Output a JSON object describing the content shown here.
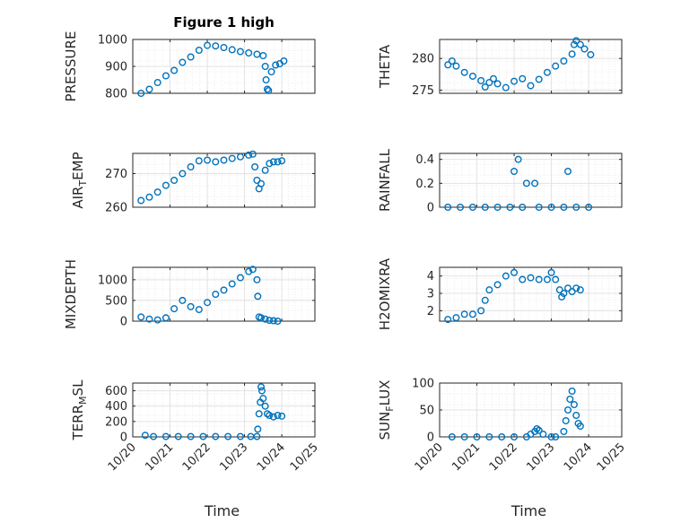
{
  "figure": {
    "title": "Figure 1 high",
    "xlabel": "Time"
  },
  "chart_data": [
    {
      "type": "scatter",
      "title": "Figure 1 high",
      "ylabel": "PRESSURE",
      "ylabel_parts": [
        {
          "t": "PRESSURE"
        }
      ],
      "ylim": [
        800,
        1000
      ],
      "yticks": [
        800,
        900,
        1000
      ],
      "ytick_labels": [
        "800",
        "900",
        "1000"
      ],
      "xlim": [
        0.8,
        5.2
      ],
      "xticks": [
        0.8,
        1.7,
        2.6,
        3.5,
        4.4,
        5.2
      ],
      "xtick_labels": [
        "10/20",
        "10/21",
        "10/22",
        "10/23",
        "10/24",
        "10/25"
      ],
      "show_xtick_labels": false,
      "xlabel": "",
      "points": [
        [
          1,
          800
        ],
        [
          1.2,
          815
        ],
        [
          1.4,
          840
        ],
        [
          1.6,
          865
        ],
        [
          1.8,
          885
        ],
        [
          2.0,
          915
        ],
        [
          2.2,
          935
        ],
        [
          2.4,
          960
        ],
        [
          2.6,
          978
        ],
        [
          2.8,
          976
        ],
        [
          3.0,
          970
        ],
        [
          3.2,
          962
        ],
        [
          3.4,
          955
        ],
        [
          3.6,
          950
        ],
        [
          3.8,
          945
        ],
        [
          3.95,
          940
        ],
        [
          4.0,
          900
        ],
        [
          4.02,
          850
        ],
        [
          4.05,
          815
        ],
        [
          4.08,
          810
        ],
        [
          4.15,
          880
        ],
        [
          4.25,
          905
        ],
        [
          4.35,
          910
        ],
        [
          4.45,
          920
        ]
      ]
    },
    {
      "type": "scatter",
      "ylabel": "THETA",
      "ylabel_parts": [
        {
          "t": "THETA"
        }
      ],
      "ylim": [
        274.5,
        283
      ],
      "yticks": [
        275,
        280
      ],
      "ytick_labels": [
        "275",
        "280"
      ],
      "xlim": [
        0.8,
        5.2
      ],
      "xticks": [
        0.8,
        1.7,
        2.6,
        3.5,
        4.4,
        5.2
      ],
      "xtick_labels": [
        "10/20",
        "10/21",
        "10/22",
        "10/23",
        "10/24",
        "10/25"
      ],
      "show_xtick_labels": false,
      "xlabel": "",
      "points": [
        [
          1,
          279
        ],
        [
          1.1,
          279.6
        ],
        [
          1.2,
          278.8
        ],
        [
          1.4,
          277.8
        ],
        [
          1.6,
          277.2
        ],
        [
          1.8,
          276.5
        ],
        [
          1.9,
          275.5
        ],
        [
          2.0,
          276.2
        ],
        [
          2.1,
          276.8
        ],
        [
          2.2,
          276
        ],
        [
          2.4,
          275.4
        ],
        [
          2.6,
          276.4
        ],
        [
          2.8,
          276.8
        ],
        [
          3.0,
          275.7
        ],
        [
          3.2,
          276.7
        ],
        [
          3.4,
          277.8
        ],
        [
          3.6,
          278.8
        ],
        [
          3.8,
          279.6
        ],
        [
          4.0,
          280.7
        ],
        [
          4.05,
          282.2
        ],
        [
          4.1,
          282.8
        ],
        [
          4.2,
          282.2
        ],
        [
          4.3,
          281.5
        ],
        [
          4.45,
          280.6
        ]
      ]
    },
    {
      "type": "scatter",
      "ylabel": "AIR_TEMP",
      "ylabel_parts": [
        {
          "t": "AIR"
        },
        {
          "t": "T",
          "sub": true
        },
        {
          "t": "EMP"
        }
      ],
      "ylim": [
        260,
        276
      ],
      "yticks": [
        260,
        270
      ],
      "ytick_labels": [
        "260",
        "270"
      ],
      "xlim": [
        0.8,
        5.2
      ],
      "xticks": [
        0.8,
        1.7,
        2.6,
        3.5,
        4.4,
        5.2
      ],
      "xtick_labels": [
        "10/20",
        "10/21",
        "10/22",
        "10/23",
        "10/24",
        "10/25"
      ],
      "show_xtick_labels": false,
      "xlabel": "",
      "points": [
        [
          1,
          262
        ],
        [
          1.2,
          263
        ],
        [
          1.4,
          264.5
        ],
        [
          1.6,
          266.5
        ],
        [
          1.8,
          268
        ],
        [
          2.0,
          270
        ],
        [
          2.2,
          272
        ],
        [
          2.4,
          273.8
        ],
        [
          2.6,
          274
        ],
        [
          2.8,
          273.5
        ],
        [
          3.0,
          274
        ],
        [
          3.2,
          274.5
        ],
        [
          3.4,
          275
        ],
        [
          3.6,
          275.5
        ],
        [
          3.7,
          275.8
        ],
        [
          3.75,
          272
        ],
        [
          3.8,
          268
        ],
        [
          3.85,
          265.5
        ],
        [
          3.9,
          267
        ],
        [
          4.0,
          271
        ],
        [
          4.1,
          273
        ],
        [
          4.2,
          273.5
        ],
        [
          4.3,
          273.5
        ],
        [
          4.4,
          273.8
        ]
      ]
    },
    {
      "type": "scatter",
      "ylabel": "RAINFALL",
      "ylabel_parts": [
        {
          "t": "RAINFALL"
        }
      ],
      "ylim": [
        0,
        0.45
      ],
      "yticks": [
        0,
        0.2,
        0.4
      ],
      "ytick_labels": [
        "0",
        "0.2",
        "0.4"
      ],
      "xlim": [
        0.8,
        5.2
      ],
      "xticks": [
        0.8,
        1.7,
        2.6,
        3.5,
        4.4,
        5.2
      ],
      "xtick_labels": [
        "10/20",
        "10/21",
        "10/22",
        "10/23",
        "10/24",
        "10/25"
      ],
      "show_xtick_labels": false,
      "xlabel": "",
      "points": [
        [
          1,
          0
        ],
        [
          1.3,
          0
        ],
        [
          1.6,
          0
        ],
        [
          1.9,
          0
        ],
        [
          2.2,
          0
        ],
        [
          2.5,
          0
        ],
        [
          2.6,
          0.3
        ],
        [
          2.7,
          0.4
        ],
        [
          2.9,
          0.2
        ],
        [
          3.1,
          0.2
        ],
        [
          2.8,
          0
        ],
        [
          3.2,
          0
        ],
        [
          3.5,
          0
        ],
        [
          3.8,
          0
        ],
        [
          3.9,
          0.3
        ],
        [
          4.1,
          0
        ],
        [
          4.4,
          0
        ]
      ]
    },
    {
      "type": "scatter",
      "ylabel": "MIXDEPTH",
      "ylabel_parts": [
        {
          "t": "MIXDEPTH"
        }
      ],
      "ylim": [
        0,
        1300
      ],
      "yticks": [
        0,
        500,
        1000
      ],
      "ytick_labels": [
        "0",
        "500",
        "1000"
      ],
      "xlim": [
        0.8,
        5.2
      ],
      "xticks": [
        0.8,
        1.7,
        2.6,
        3.5,
        4.4,
        5.2
      ],
      "xtick_labels": [
        "10/20",
        "10/21",
        "10/22",
        "10/23",
        "10/24",
        "10/25"
      ],
      "show_xtick_labels": false,
      "xlabel": "",
      "points": [
        [
          1,
          100
        ],
        [
          1.2,
          50
        ],
        [
          1.4,
          30
        ],
        [
          1.6,
          80
        ],
        [
          1.8,
          300
        ],
        [
          2.0,
          500
        ],
        [
          2.2,
          350
        ],
        [
          2.4,
          280
        ],
        [
          2.6,
          450
        ],
        [
          2.8,
          650
        ],
        [
          3.0,
          750
        ],
        [
          3.2,
          900
        ],
        [
          3.4,
          1050
        ],
        [
          3.6,
          1200
        ],
        [
          3.7,
          1250
        ],
        [
          3.8,
          1000
        ],
        [
          3.82,
          600
        ],
        [
          3.85,
          100
        ],
        [
          3.9,
          80
        ],
        [
          4.0,
          50
        ],
        [
          4.1,
          20
        ],
        [
          4.2,
          10
        ],
        [
          4.3,
          0
        ]
      ]
    },
    {
      "type": "scatter",
      "ylabel": "H2OMIXRA",
      "ylabel_parts": [
        {
          "t": "H2OMIXRA"
        }
      ],
      "ylim": [
        1.4,
        4.5
      ],
      "yticks": [
        2,
        3,
        4
      ],
      "ytick_labels": [
        "2",
        "3",
        "4"
      ],
      "xlim": [
        0.8,
        5.2
      ],
      "xticks": [
        0.8,
        1.7,
        2.6,
        3.5,
        4.4,
        5.2
      ],
      "xtick_labels": [
        "10/20",
        "10/21",
        "10/22",
        "10/23",
        "10/24",
        "10/25"
      ],
      "show_xtick_labels": false,
      "xlabel": "",
      "points": [
        [
          1,
          1.5
        ],
        [
          1.2,
          1.6
        ],
        [
          1.4,
          1.8
        ],
        [
          1.6,
          1.8
        ],
        [
          1.8,
          2.0
        ],
        [
          1.9,
          2.6
        ],
        [
          2.0,
          3.2
        ],
        [
          2.2,
          3.5
        ],
        [
          2.4,
          4.0
        ],
        [
          2.6,
          4.2
        ],
        [
          2.8,
          3.8
        ],
        [
          3.0,
          3.9
        ],
        [
          3.2,
          3.8
        ],
        [
          3.4,
          3.8
        ],
        [
          3.5,
          4.2
        ],
        [
          3.6,
          3.8
        ],
        [
          3.7,
          3.2
        ],
        [
          3.75,
          2.8
        ],
        [
          3.8,
          3.0
        ],
        [
          3.9,
          3.3
        ],
        [
          4.0,
          3.1
        ],
        [
          4.1,
          3.3
        ],
        [
          4.2,
          3.2
        ]
      ]
    },
    {
      "type": "scatter",
      "ylabel": "TERR_MSL",
      "ylabel_parts": [
        {
          "t": "TERR"
        },
        {
          "t": "M",
          "sub": true
        },
        {
          "t": "SL"
        }
      ],
      "ylim": [
        0,
        700
      ],
      "yticks": [
        0,
        200,
        400,
        600
      ],
      "ytick_labels": [
        "0",
        "200",
        "400",
        "600"
      ],
      "xlim": [
        0.8,
        5.2
      ],
      "xticks": [
        0.8,
        1.7,
        2.6,
        3.5,
        4.4,
        5.2
      ],
      "xtick_labels": [
        "10/20",
        "10/21",
        "10/22",
        "10/23",
        "10/24",
        "10/25"
      ],
      "show_xtick_labels": true,
      "xlabel": "Time",
      "points": [
        [
          1.1,
          20
        ],
        [
          1.3,
          5
        ],
        [
          1.6,
          5
        ],
        [
          1.9,
          5
        ],
        [
          2.2,
          5
        ],
        [
          2.5,
          5
        ],
        [
          2.8,
          5
        ],
        [
          3.1,
          5
        ],
        [
          3.4,
          5
        ],
        [
          3.65,
          5
        ],
        [
          3.8,
          5
        ],
        [
          3.82,
          100
        ],
        [
          3.85,
          300
        ],
        [
          3.88,
          450
        ],
        [
          3.9,
          650
        ],
        [
          3.92,
          600
        ],
        [
          3.95,
          500
        ],
        [
          4.0,
          400
        ],
        [
          4.05,
          300
        ],
        [
          4.1,
          280
        ],
        [
          4.2,
          260
        ],
        [
          4.3,
          280
        ],
        [
          4.4,
          270
        ]
      ]
    },
    {
      "type": "scatter",
      "ylabel": "SUN_FLUX",
      "ylabel_parts": [
        {
          "t": "SUN"
        },
        {
          "t": "F",
          "sub": true
        },
        {
          "t": "LUX"
        }
      ],
      "ylim": [
        0,
        100
      ],
      "yticks": [
        0,
        50,
        100
      ],
      "ytick_labels": [
        "0",
        "50",
        "100"
      ],
      "xlim": [
        0.8,
        5.2
      ],
      "xticks": [
        0.8,
        1.7,
        2.6,
        3.5,
        4.4,
        5.2
      ],
      "xtick_labels": [
        "10/20",
        "10/21",
        "10/22",
        "10/23",
        "10/24",
        "10/25"
      ],
      "show_xtick_labels": true,
      "xlabel": "Time",
      "points": [
        [
          1.1,
          0
        ],
        [
          1.4,
          0
        ],
        [
          1.7,
          0
        ],
        [
          2.0,
          0
        ],
        [
          2.3,
          0
        ],
        [
          2.6,
          0
        ],
        [
          2.9,
          0
        ],
        [
          3.0,
          5
        ],
        [
          3.1,
          10
        ],
        [
          3.15,
          15
        ],
        [
          3.2,
          12
        ],
        [
          3.3,
          5
        ],
        [
          3.5,
          0
        ],
        [
          3.6,
          0
        ],
        [
          3.8,
          10
        ],
        [
          3.85,
          30
        ],
        [
          3.9,
          50
        ],
        [
          3.95,
          70
        ],
        [
          4.0,
          85
        ],
        [
          4.05,
          60
        ],
        [
          4.1,
          40
        ],
        [
          4.15,
          25
        ],
        [
          4.2,
          20
        ]
      ]
    }
  ],
  "style": {
    "marker_color": "#0072BD",
    "grid_color": "#e3e3e3",
    "axis_color": "#262626"
  }
}
